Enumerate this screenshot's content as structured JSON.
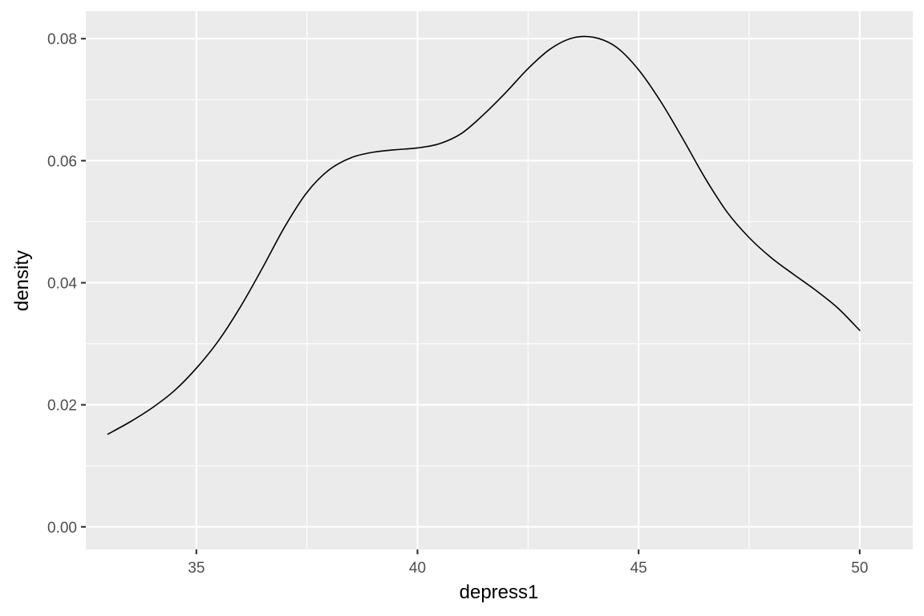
{
  "chart_data": {
    "type": "line",
    "title": "",
    "xlabel": "depress1",
    "ylabel": "density",
    "xlim": [
      32.5,
      51.2
    ],
    "ylim": [
      -0.0037,
      0.0845
    ],
    "x_ticks": [
      35,
      40,
      45,
      50
    ],
    "x_tick_labels": [
      "35",
      "40",
      "45",
      "50"
    ],
    "y_ticks": [
      0.0,
      0.02,
      0.04,
      0.06,
      0.08
    ],
    "y_tick_labels": [
      "0.00",
      "0.02",
      "0.04",
      "0.06",
      "0.08"
    ],
    "grid": true,
    "legend": "none",
    "colors": {
      "panel": "#ebebeb",
      "grid": "#ffffff",
      "line": "#000000",
      "tick_text": "#4d4d4d"
    },
    "series": [
      {
        "x": [
          33.0,
          33.5,
          34.0,
          34.5,
          35.0,
          35.5,
          36.0,
          36.5,
          37.0,
          37.5,
          38.0,
          38.5,
          39.0,
          39.5,
          40.0,
          40.5,
          41.0,
          41.5,
          42.0,
          42.5,
          43.0,
          43.5,
          44.0,
          44.5,
          45.0,
          45.5,
          46.0,
          46.5,
          47.0,
          47.5,
          48.0,
          48.5,
          49.0,
          49.5,
          50.0
        ],
        "values": [
          0.0152,
          0.0172,
          0.0195,
          0.0223,
          0.026,
          0.0305,
          0.0361,
          0.0425,
          0.0492,
          0.0548,
          0.0585,
          0.0605,
          0.0614,
          0.0618,
          0.0621,
          0.0628,
          0.0645,
          0.0676,
          0.0712,
          0.0751,
          0.0783,
          0.0801,
          0.0802,
          0.0786,
          0.0749,
          0.0697,
          0.0636,
          0.0572,
          0.0516,
          0.0474,
          0.0441,
          0.0414,
          0.0388,
          0.0359,
          0.0322
        ]
      }
    ]
  }
}
